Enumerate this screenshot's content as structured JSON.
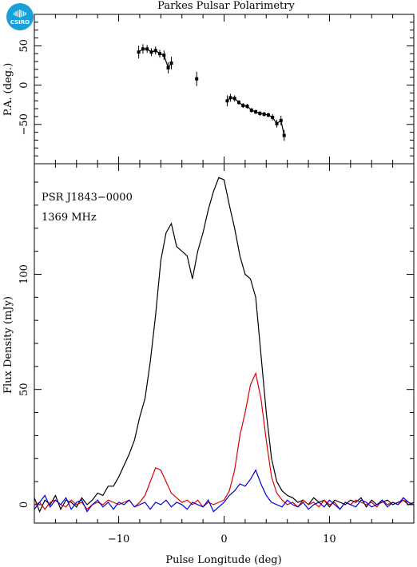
{
  "header": {
    "title": "Parkes Pulsar Polarimetry",
    "logo_text": "CSIRO"
  },
  "chart_data": [
    {
      "type": "scatter",
      "panel": "position-angle",
      "ylabel": "P.A. (deg.)",
      "xlim": [
        -18,
        18
      ],
      "ylim": [
        -100,
        90
      ],
      "yticks": [
        -50,
        0,
        50
      ],
      "xticks": [
        -10,
        0,
        10
      ],
      "points": [
        {
          "x": -8.1,
          "y": 42,
          "err": 8
        },
        {
          "x": -7.7,
          "y": 46,
          "err": 6
        },
        {
          "x": -7.3,
          "y": 46,
          "err": 5
        },
        {
          "x": -6.9,
          "y": 42,
          "err": 5
        },
        {
          "x": -6.5,
          "y": 44,
          "err": 5
        },
        {
          "x": -6.1,
          "y": 40,
          "err": 5
        },
        {
          "x": -5.7,
          "y": 38,
          "err": 6
        },
        {
          "x": -5.3,
          "y": 22,
          "err": 7
        },
        {
          "x": -5.0,
          "y": 28,
          "err": 8
        },
        {
          "x": -2.6,
          "y": 8,
          "err": 9
        },
        {
          "x": 0.3,
          "y": -20,
          "err": 7
        },
        {
          "x": 0.6,
          "y": -16,
          "err": 5
        },
        {
          "x": 1.0,
          "y": -17,
          "err": 4
        },
        {
          "x": 1.4,
          "y": -22,
          "err": 3
        },
        {
          "x": 1.8,
          "y": -26,
          "err": 3
        },
        {
          "x": 2.2,
          "y": -27,
          "err": 3
        },
        {
          "x": 2.6,
          "y": -32,
          "err": 3
        },
        {
          "x": 3.0,
          "y": -34,
          "err": 3
        },
        {
          "x": 3.4,
          "y": -36,
          "err": 3
        },
        {
          "x": 3.8,
          "y": -37,
          "err": 3
        },
        {
          "x": 4.2,
          "y": -38,
          "err": 3
        },
        {
          "x": 4.6,
          "y": -41,
          "err": 4
        },
        {
          "x": 5.0,
          "y": -49,
          "err": 5
        },
        {
          "x": 5.4,
          "y": -45,
          "err": 6
        },
        {
          "x": 5.7,
          "y": -64,
          "err": 7
        }
      ]
    },
    {
      "type": "line",
      "panel": "flux-density",
      "xlabel": "Pulse Longitude (deg)",
      "ylabel": "Flux Density (mJy)",
      "annotations": [
        "PSR J1843−0000",
        "1369 MHz"
      ],
      "xlim": [
        -18,
        18
      ],
      "ylim": [
        -8,
        148
      ],
      "yticks": [
        0,
        50,
        100
      ],
      "xticks": [
        -10,
        0,
        10
      ],
      "series": [
        {
          "color": "#000000",
          "x": [
            -18,
            -17.5,
            -17,
            -16.5,
            -16,
            -15.5,
            -15,
            -14.5,
            -14,
            -13.5,
            -13,
            -12.5,
            -12,
            -11.5,
            -11,
            -10.5,
            -10,
            -9.5,
            -9,
            -8.5,
            -8,
            -7.5,
            -7,
            -6.5,
            -6,
            -5.5,
            -5,
            -4.5,
            -4,
            -3.5,
            -3,
            -2.5,
            -2,
            -1.5,
            -1,
            -0.5,
            0,
            0.5,
            1,
            1.5,
            2,
            2.5,
            3,
            3.5,
            4,
            4.5,
            5,
            5.5,
            6,
            6.5,
            7,
            7.5,
            8,
            8.5,
            9,
            9.5,
            10,
            10.5,
            11,
            11.5,
            12,
            12.5,
            13,
            13.5,
            14,
            14.5,
            15,
            15.5,
            16,
            16.5,
            17,
            17.5,
            18
          ],
          "values": [
            3,
            -3,
            2,
            0,
            4,
            -2,
            2,
            1,
            -1,
            3,
            0,
            2,
            5,
            4,
            8,
            8,
            12,
            17,
            22,
            28,
            38,
            46,
            62,
            82,
            106,
            118,
            122,
            112,
            110,
            108,
            98,
            110,
            118,
            128,
            136,
            142,
            141,
            130,
            120,
            108,
            100,
            98,
            90,
            65,
            40,
            20,
            10,
            6,
            4,
            3,
            1,
            2,
            0,
            3,
            1,
            2,
            -1,
            2,
            1,
            0,
            2,
            1,
            3,
            -1,
            2,
            0,
            1,
            2,
            0,
            1,
            2,
            0,
            1
          ]
        },
        {
          "color": "#e00000",
          "x": [
            -18,
            -17.5,
            -17,
            -16.5,
            -16,
            -15.5,
            -15,
            -14.5,
            -14,
            -13.5,
            -13,
            -12.5,
            -12,
            -11.5,
            -11,
            -10.5,
            -10,
            -9.5,
            -9,
            -8.5,
            -8,
            -7.5,
            -7,
            -6.5,
            -6,
            -5.5,
            -5,
            -4.5,
            -4,
            -3.5,
            -3,
            -2.5,
            -2,
            -1.5,
            -1,
            -0.5,
            0,
            0.5,
            1,
            1.5,
            2,
            2.5,
            3,
            3.5,
            4,
            4.5,
            5,
            5.5,
            6,
            6.5,
            7,
            7.5,
            8,
            8.5,
            9,
            9.5,
            10,
            10.5,
            11,
            11.5,
            12,
            12.5,
            13,
            13.5,
            14,
            14.5,
            15,
            15.5,
            16,
            16.5,
            17,
            17.5,
            18
          ],
          "values": [
            0,
            1,
            -2,
            1,
            2,
            0,
            -1,
            2,
            0,
            1,
            -2,
            0,
            1,
            0,
            2,
            1,
            0,
            1,
            2,
            -1,
            1,
            4,
            10,
            16,
            15,
            10,
            5,
            3,
            1,
            2,
            0,
            2,
            -1,
            1,
            0,
            1,
            2,
            6,
            15,
            30,
            40,
            52,
            57,
            46,
            28,
            12,
            5,
            2,
            0,
            1,
            -1,
            2,
            0,
            1,
            -1,
            2,
            0,
            1,
            -2,
            1,
            0,
            2,
            1,
            0,
            1,
            -1,
            2,
            0,
            1,
            0,
            2,
            1,
            0
          ]
        },
        {
          "color": "#0000e0",
          "x": [
            -18,
            -17.5,
            -17,
            -16.5,
            -16,
            -15.5,
            -15,
            -14.5,
            -14,
            -13.5,
            -13,
            -12.5,
            -12,
            -11.5,
            -11,
            -10.5,
            -10,
            -9.5,
            -9,
            -8.5,
            -8,
            -7.5,
            -7,
            -6.5,
            -6,
            -5.5,
            -5,
            -4.5,
            -4,
            -3.5,
            -3,
            -2.5,
            -2,
            -1.5,
            -1,
            -0.5,
            0,
            0.5,
            1,
            1.5,
            2,
            2.5,
            3,
            3.5,
            4,
            4.5,
            5,
            5.5,
            6,
            6.5,
            7,
            7.5,
            8,
            8.5,
            9,
            9.5,
            10,
            10.5,
            11,
            11.5,
            12,
            12.5,
            13,
            13.5,
            14,
            14.5,
            15,
            15.5,
            16,
            16.5,
            17,
            17.5,
            18
          ],
          "values": [
            -2,
            1,
            4,
            -1,
            2,
            0,
            3,
            -2,
            1,
            2,
            -3,
            0,
            2,
            -1,
            1,
            -2,
            1,
            0,
            2,
            -1,
            0,
            1,
            -2,
            1,
            0,
            2,
            -1,
            1,
            0,
            -2,
            1,
            0,
            -1,
            2,
            -3,
            -1,
            1,
            4,
            6,
            9,
            8,
            11,
            15,
            9,
            4,
            1,
            0,
            -1,
            2,
            0,
            -1,
            1,
            -2,
            0,
            1,
            -1,
            2,
            0,
            -2,
            1,
            0,
            -1,
            2,
            1,
            -1,
            0,
            2,
            -1,
            1,
            0,
            3,
            1,
            0
          ]
        }
      ]
    }
  ]
}
